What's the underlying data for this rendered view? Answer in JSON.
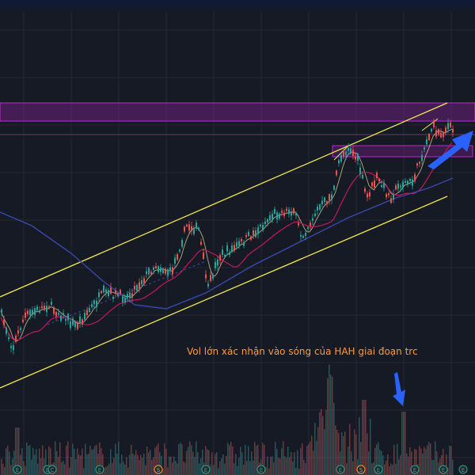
{
  "annotation": {
    "text": "Vol lớn xác nhận vào sóng của HAH giai đoạn trc",
    "color": "#ff9a3c"
  },
  "theme": {
    "background": "#161a25",
    "grid": "#232735",
    "up_candle": "#26a69a",
    "down_candle": "#ef5350",
    "ma_short": "#d4cf9a",
    "ma_mid": "#c2185b",
    "ma_long": "#3949ab",
    "channel_lines": "#f2e94e",
    "resistance_zone": "#c026d3",
    "arrow": "#2962ff"
  },
  "icons": {
    "arrow_up_right": "arrow-up-right-icon",
    "arrow_down": "arrow-down-icon",
    "event_markers": [
      "E",
      "E",
      "C",
      "E",
      "S",
      "E",
      "E",
      "E",
      "S",
      "E",
      "E",
      "E",
      "E"
    ]
  }
}
